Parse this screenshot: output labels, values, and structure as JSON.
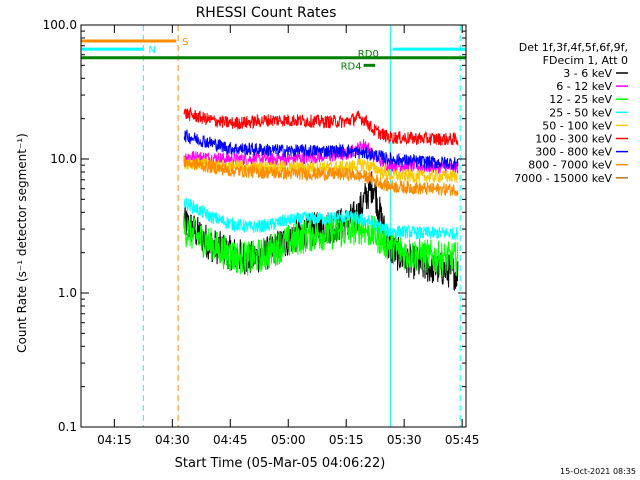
{
  "chart_data": {
    "type": "line",
    "title": "RHESSI Count Rates",
    "xlabel": "Start Time (05-Mar-05 04:06:22)",
    "ylabel": "Count Rate (s⁻¹ detector segment⁻¹)",
    "yscale": "log",
    "ylim": [
      0.1,
      100.0
    ],
    "xlim": [
      "04:06:22",
      "05:46"
    ],
    "x_ticks": [
      "04:15",
      "04:30",
      "04:45",
      "05:00",
      "05:15",
      "05:30",
      "05:45"
    ],
    "y_ticks": [
      "0.1",
      "1.0",
      "10.0",
      "100.0"
    ],
    "legend_header": [
      "Det 1f,3f,4f,5f,6f,9f,",
      "FDecim 1, Att 0"
    ],
    "legend_position": "right",
    "series": [
      {
        "name": "3 - 6 keV",
        "color": "#000000",
        "x": [
          "04:33",
          "04:40",
          "04:45",
          "04:50",
          "04:55",
          "05:00",
          "05:05",
          "05:10",
          "05:15",
          "05:18",
          "05:20",
          "05:22",
          "05:24",
          "05:26",
          "05:30",
          "05:35",
          "05:40",
          "05:44"
        ],
        "y": [
          3.4,
          2.3,
          2.0,
          1.8,
          2.0,
          2.5,
          2.9,
          3.1,
          3.3,
          3.8,
          5.2,
          6.5,
          3.6,
          2.2,
          1.8,
          1.6,
          1.5,
          1.4
        ]
      },
      {
        "name": "6 - 12 keV",
        "color": "#ff00ff",
        "x": [
          "04:33",
          "04:45",
          "05:00",
          "05:10",
          "05:15",
          "05:18",
          "05:20",
          "05:22",
          "05:26",
          "05:35",
          "05:44"
        ],
        "y": [
          10.5,
          10.0,
          10.0,
          10.5,
          10.8,
          12.0,
          13.0,
          10.5,
          9.0,
          8.8,
          8.6
        ]
      },
      {
        "name": "12 - 25 keV",
        "color": "#00ff00",
        "x": [
          "04:33",
          "04:40",
          "04:45",
          "04:50",
          "04:55",
          "05:00",
          "05:05",
          "05:10",
          "05:15",
          "05:18",
          "05:20",
          "05:22",
          "05:26",
          "05:30",
          "05:35",
          "05:40",
          "05:44"
        ],
        "y": [
          3.0,
          2.3,
          1.9,
          1.8,
          2.0,
          2.4,
          2.7,
          2.8,
          2.9,
          3.1,
          3.0,
          2.8,
          2.3,
          2.0,
          1.9,
          1.8,
          1.8
        ]
      },
      {
        "name": "25 - 50 keV",
        "color": "#00ffff",
        "x": [
          "04:33",
          "04:40",
          "04:45",
          "04:50",
          "04:55",
          "05:00",
          "05:05",
          "05:10",
          "05:15",
          "05:20",
          "05:22",
          "05:26",
          "05:35",
          "05:44"
        ],
        "y": [
          4.8,
          3.7,
          3.3,
          3.1,
          3.2,
          3.5,
          3.6,
          3.6,
          3.7,
          3.5,
          3.3,
          2.9,
          2.8,
          2.8
        ]
      },
      {
        "name": "50 - 100 keV",
        "color": "#ffc800",
        "x": [
          "04:33",
          "04:45",
          "05:00",
          "05:15",
          "05:20",
          "05:22",
          "05:26",
          "05:35",
          "05:44"
        ],
        "y": [
          9.4,
          8.8,
          8.6,
          8.7,
          9.2,
          8.6,
          7.6,
          7.4,
          7.4
        ]
      },
      {
        "name": "100 - 300 keV",
        "color": "#ff0000",
        "x": [
          "04:33",
          "04:40",
          "04:45",
          "04:50",
          "04:55",
          "05:00",
          "05:10",
          "05:15",
          "05:18",
          "05:20",
          "05:22",
          "05:26",
          "05:35",
          "05:44"
        ],
        "y": [
          22.0,
          19.5,
          18.5,
          18.8,
          19.5,
          19.5,
          19.0,
          19.0,
          20.5,
          19.5,
          16.5,
          14.5,
          14.2,
          14.0
        ]
      },
      {
        "name": "300 - 800 keV",
        "color": "#0000ff",
        "x": [
          "04:33",
          "04:45",
          "05:00",
          "05:15",
          "05:20",
          "05:22",
          "05:26",
          "05:35",
          "05:44"
        ],
        "y": [
          15.0,
          12.0,
          11.5,
          11.5,
          11.0,
          10.8,
          10.0,
          9.5,
          9.3
        ]
      },
      {
        "name": "800 - 7000 keV",
        "color": "#ff8c00",
        "x": [
          "04:33",
          "04:45",
          "05:00",
          "05:15",
          "05:20",
          "05:22",
          "05:26",
          "05:35",
          "05:44"
        ],
        "y": [
          9.5,
          8.2,
          7.8,
          7.7,
          7.4,
          7.0,
          6.3,
          6.0,
          5.9
        ]
      },
      {
        "name": "7000 - 15000 keV",
        "color": "#b87333",
        "x": [],
        "y": []
      }
    ],
    "annotations": [
      {
        "label": "S",
        "x_start": "04:06:22",
        "x_end": "04:31",
        "y": 76.0,
        "color": "#ff8c00"
      },
      {
        "label": "N",
        "x_start": "04:06:22",
        "x_end": "04:22:30",
        "y": 66.0,
        "color": "#00ffff"
      },
      {
        "label": "",
        "x_start": "05:27",
        "x_end": "05:46",
        "y": 66.0,
        "color": "#00ffff"
      },
      {
        "label": "RD0",
        "x_start": "04:06:22",
        "x_end": "05:46",
        "y": 57.0,
        "color": "#008000"
      },
      {
        "label": "RD4",
        "x_start": "05:19:30",
        "x_end": "05:22:30",
        "y": 50.0,
        "color": "#008000"
      }
    ],
    "vertical_lines": [
      {
        "x": "04:22:30",
        "color": "#00ffff",
        "style": "dashed"
      },
      {
        "x": "04:31:30",
        "color": "#ff8c00",
        "style": "dashed"
      },
      {
        "x": "05:26:30",
        "color": "#00ffff",
        "style": "solid"
      },
      {
        "x": "05:44:30",
        "color": "#00ffff",
        "style": "dashed"
      },
      {
        "x": "04:06:22",
        "color": "#00ffff",
        "style": "solid"
      }
    ]
  },
  "footer_timestamp": "15-Oct-2021 08:35"
}
